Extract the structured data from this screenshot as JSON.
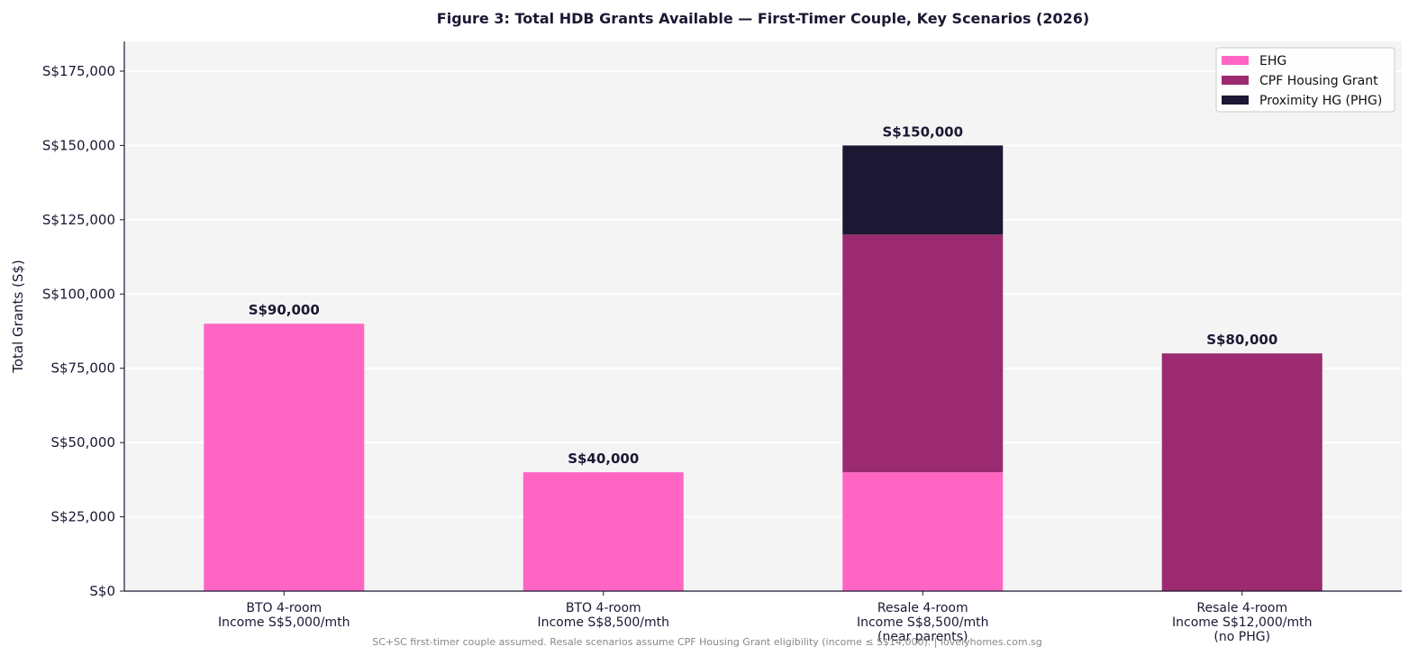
{
  "chart_data": {
    "type": "bar",
    "stacked": true,
    "title": "Figure 3: Total HDB Grants Available — First-Timer Couple, Key Scenarios (2026)",
    "ylabel": "Total Grants (S$)",
    "xlabel": "",
    "ylim": [
      0,
      185000
    ],
    "yticks": [
      0,
      25000,
      50000,
      75000,
      100000,
      125000,
      150000,
      175000
    ],
    "ytick_labels": [
      "S$0",
      "S$25,000",
      "S$50,000",
      "S$75,000",
      "S$100,000",
      "S$125,000",
      "S$150,000",
      "S$175,000"
    ],
    "grid": "horizontal",
    "legend_position": "top-right",
    "categories": [
      [
        "BTO 4-room",
        "Income S$5,000/mth"
      ],
      [
        "BTO 4-room",
        "Income S$8,500/mth"
      ],
      [
        "Resale 4-room",
        "Income S$8,500/mth",
        "(near parents)"
      ],
      [
        "Resale 4-room",
        "Income S$12,000/mth",
        "(no PHG)"
      ]
    ],
    "series": [
      {
        "name": "EHG",
        "color": "#ff66c4",
        "values": [
          90000,
          40000,
          40000,
          0
        ]
      },
      {
        "name": "CPF Housing Grant",
        "color": "#9b2a70",
        "values": [
          0,
          0,
          80000,
          80000
        ]
      },
      {
        "name": "Proximity HG (PHG)",
        "color": "#1c1733",
        "values": [
          0,
          0,
          30000,
          0
        ]
      }
    ],
    "totals": [
      90000,
      40000,
      150000,
      80000
    ],
    "total_labels": [
      "S$90,000",
      "S$40,000",
      "S$150,000",
      "S$80,000"
    ],
    "footnote": "SC+SC first-timer couple assumed. Resale scenarios assume CPF Housing Grant eligibility (income ≤ S$14,000). | lovelyhomes.com.sg",
    "colors": {
      "plot_background": "#f4f4f4",
      "grid": "#ffffff",
      "text": "#1c1733",
      "footnote": "#888888"
    }
  }
}
